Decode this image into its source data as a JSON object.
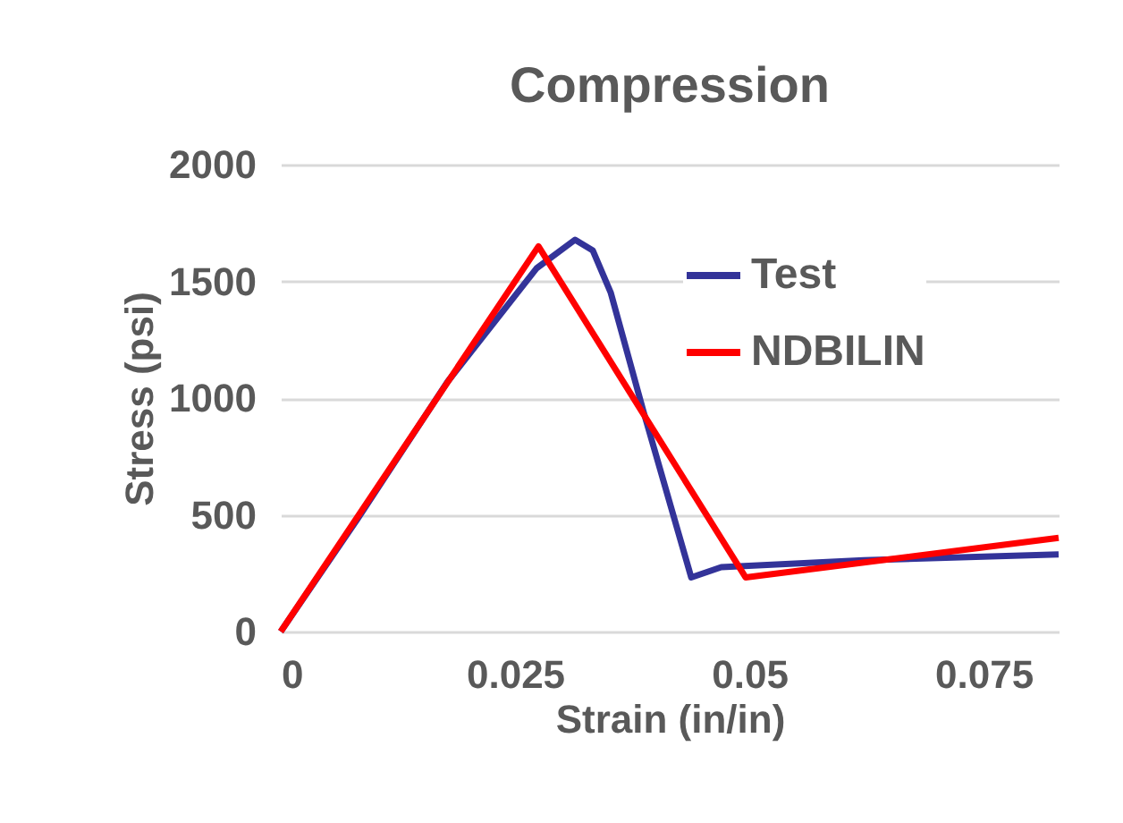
{
  "chart_data": {
    "type": "line",
    "title": "Compression",
    "xlabel": "Strain (in/in)",
    "ylabel": "Stress (psi)",
    "xlim": [
      0,
      0.083
    ],
    "xticks": [
      0,
      0.025,
      0.05,
      0.075
    ],
    "ylim": [
      0,
      2000
    ],
    "yticks": [
      0,
      500,
      1000,
      1500,
      2000
    ],
    "grid": "y",
    "legend": "top right",
    "line_style": "solid",
    "marker": "none",
    "series": [
      {
        "name": "Test",
        "color": "#333399",
        "x": [
          0,
          0.0082,
          0.0178,
          0.0273,
          0.0314,
          0.0333,
          0.0352,
          0.0387,
          0.0438,
          0.047,
          0.0622,
          0.083
        ],
        "values": [
          0,
          483,
          1070,
          1556,
          1678,
          1632,
          1453,
          943,
          232,
          276,
          306,
          330
        ]
      },
      {
        "name": "NDBILIN",
        "color": "#ff0000",
        "x": [
          0,
          0.0275,
          0.0496,
          0.083
        ],
        "values": [
          0,
          1650,
          232,
          401
        ]
      }
    ]
  }
}
